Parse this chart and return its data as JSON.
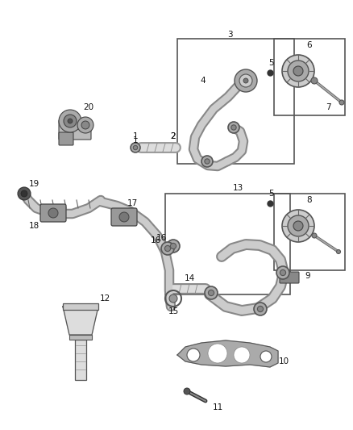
{
  "bg_color": "#ffffff",
  "fig_width": 4.38,
  "fig_height": 5.33,
  "dpi": 100,
  "label_fontsize": 7.5
}
